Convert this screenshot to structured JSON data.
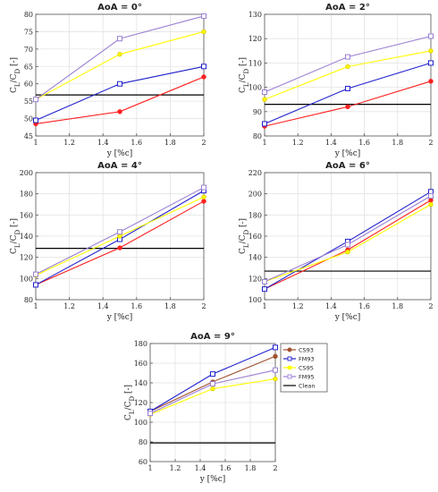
{
  "chart_data": [
    {
      "type": "line",
      "title": "AoA = 0°",
      "xlabel": "y [%c]",
      "ylabel": "C_L/C_D [-]",
      "x": [
        1,
        1.5,
        2
      ],
      "xlim": [
        1,
        2
      ],
      "ylim": [
        45,
        80
      ],
      "xticks": [
        "1",
        "1.2",
        "1.4",
        "1.6",
        "1.8",
        "2"
      ],
      "yticks": [
        "45",
        "50",
        "55",
        "60",
        "65",
        "70",
        "75",
        "80"
      ],
      "grid": true,
      "series": [
        {
          "name": "CS93",
          "color": "#ff2020",
          "marker": "circle",
          "values": [
            48.5,
            52,
            62
          ]
        },
        {
          "name": "FM93",
          "color": "#2020cc",
          "marker": "square",
          "values": [
            49.5,
            60,
            65
          ]
        },
        {
          "name": "CS95",
          "color": "#ffff00",
          "marker": "circle",
          "values": [
            55.5,
            68.5,
            75
          ]
        },
        {
          "name": "FM95",
          "color": "#9b7fd4",
          "marker": "square",
          "values": [
            55.5,
            73,
            79.5
          ]
        },
        {
          "name": "Clean",
          "color": "#000000",
          "marker": "none",
          "values": [
            56.8,
            56.8,
            56.8
          ]
        }
      ]
    },
    {
      "type": "line",
      "title": "AoA = 2°",
      "xlabel": "y [%c]",
      "ylabel": "C_L/C_D [-]",
      "x": [
        1,
        1.5,
        2
      ],
      "xlim": [
        1,
        2
      ],
      "ylim": [
        80,
        130
      ],
      "xticks": [
        "1",
        "1.2",
        "1.4",
        "1.6",
        "1.8",
        "2"
      ],
      "yticks": [
        "80",
        "90",
        "100",
        "110",
        "120",
        "130"
      ],
      "grid": true,
      "series": [
        {
          "name": "CS93",
          "color": "#ff2020",
          "marker": "circle",
          "values": [
            84,
            92,
            102.5
          ]
        },
        {
          "name": "FM93",
          "color": "#2020cc",
          "marker": "square",
          "values": [
            85,
            99.5,
            110
          ]
        },
        {
          "name": "CS95",
          "color": "#ffff00",
          "marker": "circle",
          "values": [
            95,
            108.5,
            115
          ]
        },
        {
          "name": "FM95",
          "color": "#9b7fd4",
          "marker": "square",
          "values": [
            98,
            112.5,
            121
          ]
        },
        {
          "name": "Clean",
          "color": "#000000",
          "marker": "none",
          "values": [
            93,
            93,
            93
          ]
        }
      ]
    },
    {
      "type": "line",
      "title": "AoA = 4°",
      "xlabel": "y [%c]",
      "ylabel": "C_L/C_D [-]",
      "x": [
        1,
        1.5,
        2
      ],
      "xlim": [
        1,
        2
      ],
      "ylim": [
        80,
        200
      ],
      "xticks": [
        "1",
        "1.2",
        "1.4",
        "1.6",
        "1.8",
        "2"
      ],
      "yticks": [
        "80",
        "100",
        "120",
        "140",
        "160",
        "180",
        "200"
      ],
      "grid": true,
      "series": [
        {
          "name": "CS93",
          "color": "#ff2020",
          "marker": "circle",
          "values": [
            94,
            129,
            173
          ]
        },
        {
          "name": "FM93",
          "color": "#2020cc",
          "marker": "square",
          "values": [
            94,
            137,
            183
          ]
        },
        {
          "name": "CS95",
          "color": "#ffff00",
          "marker": "circle",
          "values": [
            103,
            140,
            177
          ]
        },
        {
          "name": "FM95",
          "color": "#9b7fd4",
          "marker": "square",
          "values": [
            104,
            144,
            186
          ]
        },
        {
          "name": "Clean",
          "color": "#000000",
          "marker": "none",
          "values": [
            128.5,
            128.5,
            128.5
          ]
        }
      ]
    },
    {
      "type": "line",
      "title": "AoA = 6°",
      "xlabel": "y [%c]",
      "ylabel": "C_L/C_D [-]",
      "x": [
        1,
        1.5,
        2
      ],
      "xlim": [
        1,
        2
      ],
      "ylim": [
        100,
        220
      ],
      "xticks": [
        "1",
        "1.2",
        "1.4",
        "1.6",
        "1.8",
        "2"
      ],
      "yticks": [
        "100",
        "120",
        "140",
        "160",
        "180",
        "200",
        "220"
      ],
      "grid": true,
      "series": [
        {
          "name": "CS93",
          "color": "#ff2020",
          "marker": "circle",
          "values": [
            110,
            147,
            194
          ]
        },
        {
          "name": "FM93",
          "color": "#2020cc",
          "marker": "square",
          "values": [
            110,
            155,
            202
          ]
        },
        {
          "name": "CS95",
          "color": "#ffff00",
          "marker": "circle",
          "values": [
            117,
            145,
            190
          ]
        },
        {
          "name": "FM95",
          "color": "#9b7fd4",
          "marker": "square",
          "values": [
            117,
            152,
            198
          ]
        },
        {
          "name": "Clean",
          "color": "#000000",
          "marker": "none",
          "values": [
            127,
            127,
            127
          ]
        }
      ]
    },
    {
      "type": "line",
      "title": "AoA = 9°",
      "xlabel": "y [%c]",
      "ylabel": "C_L/C_D [-]",
      "x": [
        1,
        1.5,
        2
      ],
      "xlim": [
        1,
        2
      ],
      "ylim": [
        60,
        180
      ],
      "xticks": [
        "1",
        "1.2",
        "1.4",
        "1.6",
        "1.8",
        "2"
      ],
      "yticks": [
        "60",
        "80",
        "100",
        "120",
        "140",
        "160",
        "180"
      ],
      "grid": true,
      "legend_position": "outside-right",
      "series": [
        {
          "name": "CS93",
          "color": "#a0522d",
          "marker": "circle",
          "values": [
            111,
            141,
            167
          ]
        },
        {
          "name": "FM93",
          "color": "#2020cc",
          "marker": "square",
          "values": [
            111,
            149,
            176
          ]
        },
        {
          "name": "CS95",
          "color": "#ffff00",
          "marker": "circle",
          "values": [
            108,
            134,
            144
          ]
        },
        {
          "name": "FM95",
          "color": "#9b7fd4",
          "marker": "square",
          "values": [
            109,
            139,
            153
          ]
        },
        {
          "name": "Clean",
          "color": "#000000",
          "marker": "none",
          "values": [
            79,
            79,
            79
          ]
        }
      ]
    }
  ]
}
